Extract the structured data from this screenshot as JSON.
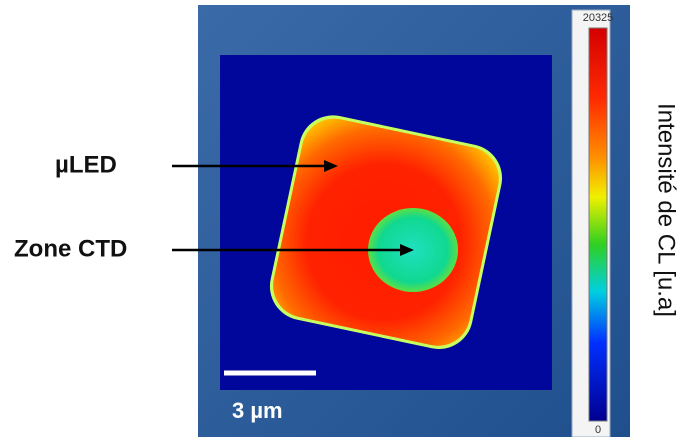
{
  "labels": {
    "led": "µLED",
    "ctd_zone": "Zone CTD"
  },
  "scale_bar": {
    "label": "3 µm"
  },
  "colorbar": {
    "max": 20325,
    "min": 0,
    "title": "Intensité de CL [u.a]"
  }
}
